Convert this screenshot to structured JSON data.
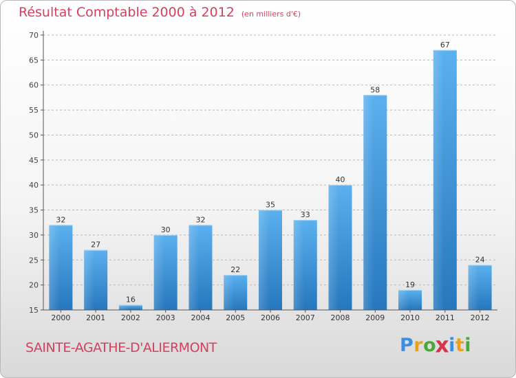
{
  "chart_data": {
    "type": "bar",
    "title": "Résultat Comptable 2000 à 2012",
    "subtitle": "(en milliers d'€)",
    "categories": [
      "2000",
      "2001",
      "2002",
      "2003",
      "2004",
      "2005",
      "2006",
      "2007",
      "2008",
      "2009",
      "2010",
      "2011",
      "2012"
    ],
    "values": [
      32,
      27,
      16,
      30,
      32,
      22,
      35,
      33,
      40,
      58,
      19,
      67,
      24
    ],
    "ylim": [
      15,
      70
    ],
    "yticks": [
      15,
      20,
      25,
      30,
      35,
      40,
      45,
      50,
      55,
      60,
      65,
      70
    ],
    "xlabel": "",
    "ylabel": "",
    "grid": "horizontal dashed",
    "bar_color": "#3a8fd8"
  },
  "subject": "SAINTE-AGATHE-D'ALIERMONT",
  "logo": {
    "letters": [
      "P",
      "r",
      "o",
      "x",
      "i",
      "t",
      "i"
    ],
    "colors": [
      "#3d8ee0",
      "#e9a21c",
      "#4aa83a",
      "#d8324c",
      "#3d8ee0",
      "#e9a21c",
      "#4aa83a"
    ]
  }
}
